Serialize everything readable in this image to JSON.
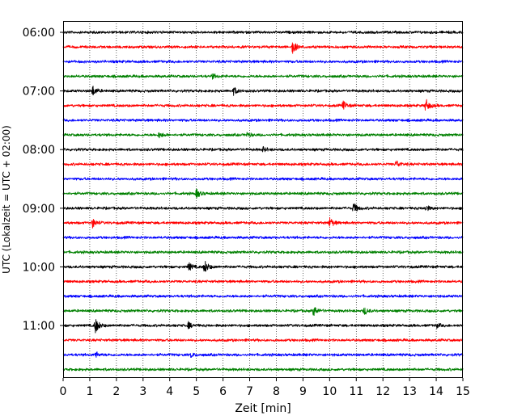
{
  "chart_data": {
    "type": "line",
    "title": "",
    "xlabel": "Zeit  [min]",
    "ylabel": "UTC (Lokalzeit = UTC + 02:00)",
    "xlim": [
      0,
      15
    ],
    "x_ticks": [
      "0",
      "1",
      "2",
      "3",
      "4",
      "5",
      "6",
      "7",
      "8",
      "9",
      "10",
      "11",
      "12",
      "13",
      "14",
      "15"
    ],
    "y_ticks": [
      "06:00",
      "07:00",
      "08:00",
      "09:00",
      "10:00",
      "11:00"
    ],
    "grid": "vertical dotted at each minute",
    "trace_interval_minutes": 15,
    "start_time": "06:00",
    "trace_count": 24,
    "colors": [
      "#000000",
      "#ff0000",
      "#0000ff",
      "#008000"
    ],
    "series": [
      {
        "start": "06:00",
        "color": "#000000",
        "events": []
      },
      {
        "start": "06:15",
        "color": "#ff0000",
        "events": [
          [
            8.6,
            1.0
          ]
        ]
      },
      {
        "start": "06:30",
        "color": "#0000ff",
        "events": []
      },
      {
        "start": "06:45",
        "color": "#008000",
        "events": [
          [
            5.6,
            0.3
          ]
        ]
      },
      {
        "start": "07:00",
        "color": "#000000",
        "events": [
          [
            1.1,
            0.7
          ],
          [
            6.4,
            0.5
          ]
        ]
      },
      {
        "start": "07:15",
        "color": "#ff0000",
        "events": [
          [
            10.5,
            0.6
          ],
          [
            13.6,
            0.9
          ]
        ]
      },
      {
        "start": "07:30",
        "color": "#0000ff",
        "events": []
      },
      {
        "start": "07:45",
        "color": "#008000",
        "events": [
          [
            3.6,
            0.4
          ],
          [
            6.9,
            0.3
          ]
        ]
      },
      {
        "start": "08:00",
        "color": "#000000",
        "events": [
          [
            7.5,
            0.3
          ]
        ]
      },
      {
        "start": "08:15",
        "color": "#ff0000",
        "events": [
          [
            12.5,
            0.5
          ]
        ]
      },
      {
        "start": "08:30",
        "color": "#0000ff",
        "events": []
      },
      {
        "start": "08:45",
        "color": "#008000",
        "events": [
          [
            5.0,
            0.6
          ]
        ]
      },
      {
        "start": "09:00",
        "color": "#000000",
        "events": [
          [
            10.9,
            0.7
          ],
          [
            13.6,
            0.4
          ]
        ]
      },
      {
        "start": "09:15",
        "color": "#ff0000",
        "events": [
          [
            1.1,
            0.6
          ],
          [
            10.0,
            0.7
          ]
        ]
      },
      {
        "start": "09:30",
        "color": "#0000ff",
        "events": []
      },
      {
        "start": "09:45",
        "color": "#008000",
        "events": []
      },
      {
        "start": "10:00",
        "color": "#000000",
        "events": [
          [
            4.7,
            0.6
          ],
          [
            5.3,
            0.9
          ]
        ]
      },
      {
        "start": "10:15",
        "color": "#ff0000",
        "events": []
      },
      {
        "start": "10:30",
        "color": "#0000ff",
        "events": []
      },
      {
        "start": "10:45",
        "color": "#008000",
        "events": [
          [
            9.4,
            0.7
          ],
          [
            11.3,
            0.5
          ]
        ]
      },
      {
        "start": "11:00",
        "color": "#000000",
        "events": [
          [
            1.2,
            1.1
          ],
          [
            4.7,
            0.4
          ],
          [
            14.0,
            0.3
          ]
        ]
      },
      {
        "start": "11:15",
        "color": "#ff0000",
        "events": []
      },
      {
        "start": "11:30",
        "color": "#0000ff",
        "events": [
          [
            1.2,
            0.4
          ],
          [
            4.8,
            0.3
          ]
        ]
      },
      {
        "start": "11:45",
        "color": "#008000",
        "events": []
      }
    ]
  }
}
